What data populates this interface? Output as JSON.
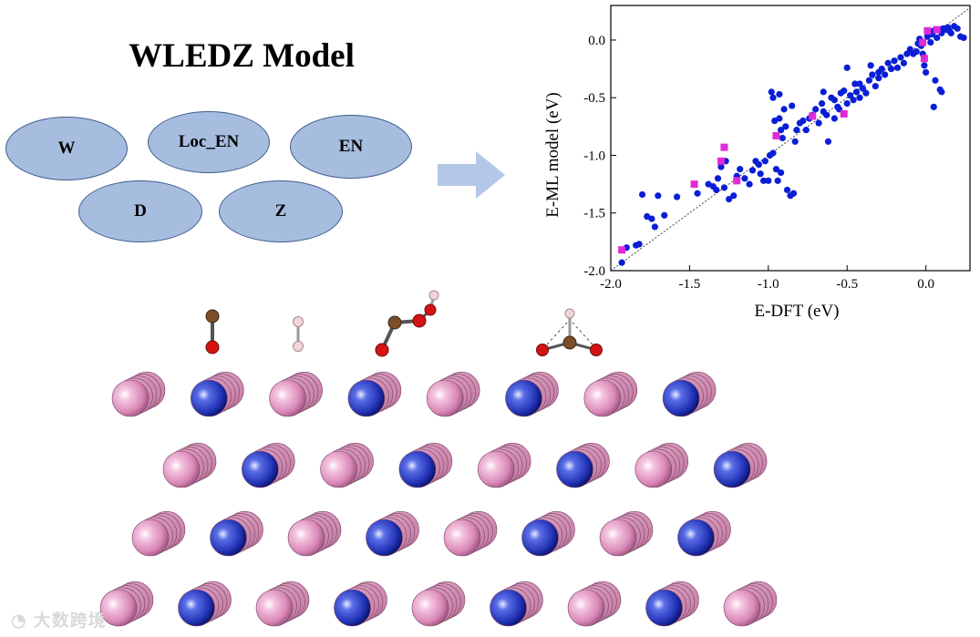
{
  "title": "WLEDZ Model",
  "features": [
    "W",
    "Loc_EN",
    "EN",
    "D",
    "Z"
  ],
  "watermark": "大数跨境",
  "colors": {
    "ellipse_fill": "#a7bde0",
    "ellipse_stroke": "#3f5d8c",
    "arrow": "#b3c7e6",
    "blue_points": "#0a1ed6",
    "magenta_points": "#e02ad6",
    "atom_pink": "#e59ac4",
    "atom_blue": "#2a3bc0",
    "carbon": "#7a4e2a",
    "oxygen": "#d41414",
    "hydrogen": "#f1d7dc"
  },
  "adsorbates": [
    "CO",
    "H2",
    "COOH",
    "HCO (bridging)"
  ],
  "chart_data": {
    "type": "scatter",
    "xlabel": "E-DFT (eV)",
    "ylabel": "E-ML model (eV)",
    "xlim": [
      -2.0,
      0.28
    ],
    "ylim": [
      -2.0,
      0.3
    ],
    "xticks": [
      "-2.0",
      "-1.5",
      "-1.0",
      "-0.5",
      "0.0"
    ],
    "yticks": [
      "0.0",
      "-0.5",
      "-1.0",
      "-1.5",
      "-2.0"
    ],
    "parity_line": true,
    "series": [
      {
        "marker": "circle",
        "color": "#0a1ed6",
        "points": [
          [
            -1.93,
            -1.93
          ],
          [
            -1.9,
            -1.8
          ],
          [
            -1.84,
            -1.78
          ],
          [
            -1.82,
            -1.77
          ],
          [
            -1.8,
            -1.34
          ],
          [
            -1.77,
            -1.53
          ],
          [
            -1.74,
            -1.55
          ],
          [
            -1.72,
            -1.62
          ],
          [
            -1.7,
            -1.35
          ],
          [
            -1.66,
            -1.52
          ],
          [
            -1.58,
            -1.36
          ],
          [
            -1.45,
            -1.33
          ],
          [
            -1.38,
            -1.25
          ],
          [
            -1.35,
            -1.27
          ],
          [
            -1.33,
            -1.3
          ],
          [
            -1.32,
            -1.2
          ],
          [
            -1.3,
            -1.1
          ],
          [
            -1.28,
            -1.28
          ],
          [
            -1.25,
            -1.38
          ],
          [
            -1.22,
            -1.35
          ],
          [
            -1.2,
            -1.18
          ],
          [
            -1.18,
            -1.12
          ],
          [
            -1.15,
            -1.2
          ],
          [
            -1.12,
            -1.25
          ],
          [
            -1.1,
            -1.13
          ],
          [
            -1.08,
            -1.05
          ],
          [
            -1.06,
            -1.08
          ],
          [
            -1.05,
            -1.16
          ],
          [
            -1.03,
            -1.22
          ],
          [
            -1.02,
            -1.05
          ],
          [
            -1.0,
            -1.22
          ],
          [
            -0.99,
            -1.0
          ],
          [
            -0.98,
            -0.45
          ],
          [
            -0.97,
            -0.5
          ],
          [
            -0.97,
            -0.98
          ],
          [
            -0.96,
            -0.7
          ],
          [
            -0.95,
            -1.12
          ],
          [
            -0.94,
            -1.22
          ],
          [
            -0.93,
            -0.47
          ],
          [
            -0.93,
            -0.68
          ],
          [
            -0.92,
            -0.78
          ],
          [
            -0.91,
            -0.85
          ],
          [
            -0.9,
            -0.6
          ],
          [
            -0.89,
            -0.75
          ],
          [
            -0.88,
            -1.3
          ],
          [
            -0.86,
            -1.35
          ],
          [
            -0.84,
            -1.33
          ],
          [
            -0.83,
            -0.88
          ],
          [
            -0.82,
            -0.78
          ],
          [
            -0.8,
            -0.72
          ],
          [
            -0.78,
            -0.7
          ],
          [
            -0.76,
            -0.78
          ],
          [
            -0.74,
            -0.68
          ],
          [
            -0.72,
            -0.66
          ],
          [
            -0.7,
            -0.6
          ],
          [
            -0.68,
            -0.72
          ],
          [
            -0.66,
            -0.55
          ],
          [
            -0.65,
            -0.62
          ],
          [
            -0.63,
            -0.65
          ],
          [
            -0.62,
            -0.88
          ],
          [
            -0.6,
            -0.5
          ],
          [
            -0.58,
            -0.52
          ],
          [
            -0.56,
            -0.58
          ],
          [
            -0.54,
            -0.46
          ],
          [
            -0.52,
            -0.44
          ],
          [
            -0.5,
            -0.55
          ],
          [
            -0.48,
            -0.48
          ],
          [
            -0.46,
            -0.52
          ],
          [
            -0.44,
            -0.45
          ],
          [
            -0.42,
            -0.38
          ],
          [
            -0.4,
            -0.42
          ],
          [
            -0.38,
            -0.46
          ],
          [
            -0.36,
            -0.35
          ],
          [
            -0.34,
            -0.3
          ],
          [
            -0.32,
            -0.4
          ],
          [
            -0.3,
            -0.33
          ],
          [
            -0.28,
            -0.25
          ],
          [
            -0.26,
            -0.3
          ],
          [
            -0.24,
            -0.2
          ],
          [
            -0.22,
            -0.25
          ],
          [
            -0.2,
            -0.18
          ],
          [
            -0.18,
            -0.24
          ],
          [
            -0.16,
            -0.15
          ],
          [
            -0.14,
            -0.2
          ],
          [
            -0.12,
            -0.12
          ],
          [
            -0.1,
            -0.08
          ],
          [
            -0.08,
            -0.12
          ],
          [
            -0.06,
            -0.1
          ],
          [
            -0.05,
            -0.03
          ],
          [
            -0.04,
            0.01
          ],
          [
            -0.03,
            -0.05
          ],
          [
            -0.02,
            -0.12
          ],
          [
            -0.01,
            -0.22
          ],
          [
            0.0,
            -0.28
          ],
          [
            0.01,
            0.03
          ],
          [
            0.02,
            0.06
          ],
          [
            0.03,
            -0.02
          ],
          [
            0.04,
            0.05
          ],
          [
            0.05,
            0.08
          ],
          [
            0.06,
            -0.35
          ],
          [
            0.07,
            0.02
          ],
          [
            0.08,
            0.09
          ],
          [
            0.09,
            -0.43
          ],
          [
            0.1,
            0.06
          ],
          [
            0.11,
            0.1
          ],
          [
            0.12,
            0.1
          ],
          [
            0.13,
            0.09
          ],
          [
            0.14,
            0.11
          ],
          [
            0.15,
            0.08
          ],
          [
            0.16,
            0.06
          ],
          [
            0.18,
            0.12
          ],
          [
            0.2,
            0.1
          ],
          [
            0.22,
            0.03
          ],
          [
            0.24,
            0.02
          ],
          [
            0.05,
            -0.58
          ],
          [
            0.1,
            -0.45
          ],
          [
            -0.35,
            -0.22
          ],
          [
            -0.5,
            -0.24
          ],
          [
            -0.65,
            -0.45
          ],
          [
            -0.85,
            -0.57
          ],
          [
            -0.92,
            -1.15
          ],
          [
            -1.27,
            -1.05
          ],
          [
            -0.72,
            -0.65
          ],
          [
            -0.58,
            -0.68
          ],
          [
            -0.55,
            -0.6
          ],
          [
            -0.45,
            -0.38
          ],
          [
            -0.42,
            -0.5
          ],
          [
            -0.3,
            -0.28
          ]
        ]
      },
      {
        "marker": "square",
        "color": "#e02ad6",
        "points": [
          [
            -1.93,
            -1.82
          ],
          [
            -1.47,
            -1.25
          ],
          [
            -1.3,
            -1.05
          ],
          [
            -1.28,
            -0.93
          ],
          [
            -1.2,
            -1.22
          ],
          [
            -0.95,
            -0.83
          ],
          [
            -0.72,
            -0.66
          ],
          [
            -0.52,
            -0.64
          ],
          [
            -0.02,
            -0.02
          ],
          [
            -0.01,
            -0.16
          ],
          [
            0.01,
            0.08
          ],
          [
            0.07,
            0.09
          ]
        ]
      }
    ]
  }
}
